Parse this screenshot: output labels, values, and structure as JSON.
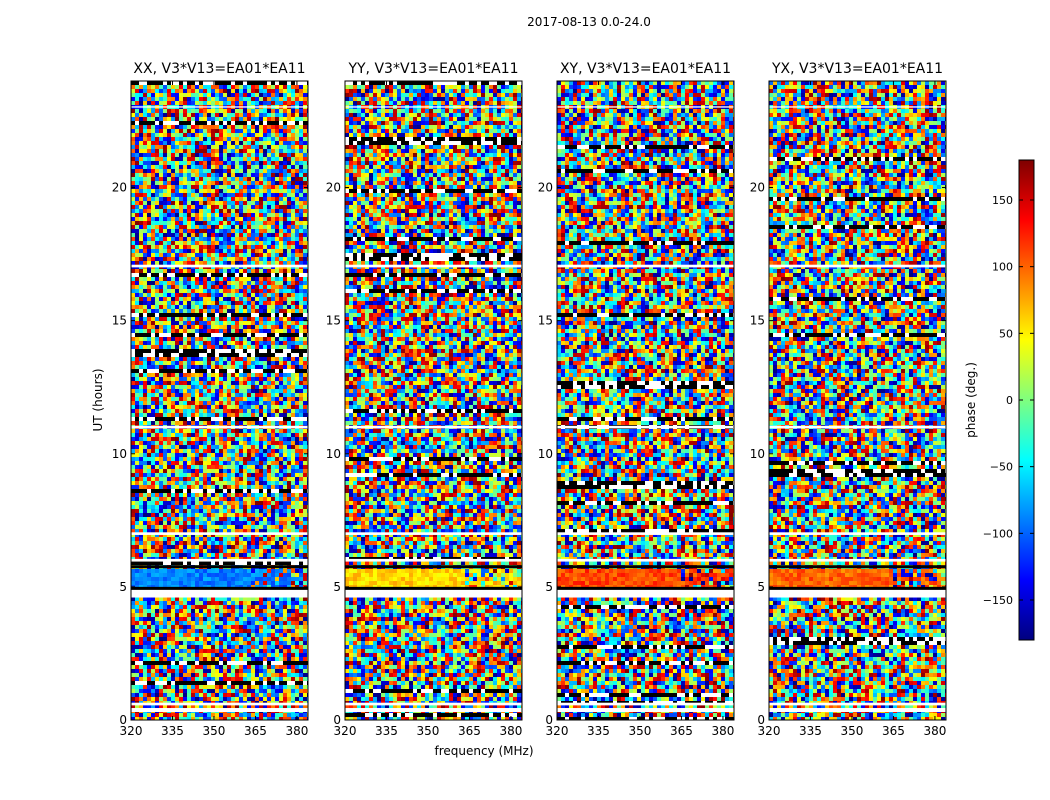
{
  "figure": {
    "suptitle": "2017-08-13 0.0-24.0",
    "xlabel": "frequency (MHz)",
    "ylabel": "UT (hours)"
  },
  "colorbar": {
    "label": "phase (deg.)",
    "range": [
      -180,
      180
    ],
    "ticks": [
      150,
      100,
      50,
      0,
      -50,
      -100,
      -150
    ],
    "tick_labels": [
      "150",
      "100",
      "50",
      "0",
      "−50",
      "−100",
      "−150"
    ],
    "colormap": [
      "#00007f",
      "#0000ff",
      "#007fff",
      "#00ffff",
      "#7fff7f",
      "#ffff00",
      "#ff7f00",
      "#ff0000",
      "#7f0000"
    ]
  },
  "chart_data": [
    {
      "type": "heatmap",
      "title": "XX, V3*V13=EA01*EA11",
      "polarization": "XX",
      "xlim": [
        320,
        384
      ],
      "ylim": [
        0,
        24
      ],
      "xticks": [
        320,
        335,
        350,
        365,
        380
      ],
      "yticks": [
        0,
        5,
        10,
        15,
        20
      ],
      "xtick_labels": [
        "320",
        "335",
        "350",
        "365",
        "380"
      ],
      "ytick_labels": [
        "0",
        "5",
        "10",
        "15",
        "20"
      ],
      "blank_hours": [
        [
          0.3,
          0.45
        ],
        [
          0.55,
          0.65
        ],
        [
          4.6,
          4.95
        ],
        [
          5.95,
          6.05
        ],
        [
          6.95,
          7.05
        ],
        [
          10.95,
          11.05
        ],
        [
          17.0,
          17.1
        ],
        [
          23.0,
          23.05
        ]
      ],
      "coherent_band_hours": [
        [
          5.0,
          5.7
        ]
      ],
      "coherent_band_phase_deg": -90
    },
    {
      "type": "heatmap",
      "title": "YY, V3*V13=EA01*EA11",
      "polarization": "YY",
      "xlim": [
        320,
        384
      ],
      "ylim": [
        0,
        24
      ],
      "xticks": [
        320,
        335,
        350,
        365,
        380
      ],
      "yticks": [
        0,
        5,
        10,
        15,
        20
      ],
      "xtick_labels": [
        "320",
        "335",
        "350",
        "365",
        "380"
      ],
      "ytick_labels": [
        "0",
        "5",
        "10",
        "15",
        "20"
      ],
      "blank_hours": [
        [
          0.3,
          0.45
        ],
        [
          0.55,
          0.65
        ],
        [
          4.6,
          4.95
        ],
        [
          5.95,
          6.05
        ],
        [
          6.95,
          7.05
        ],
        [
          10.95,
          11.05
        ],
        [
          17.0,
          17.1
        ],
        [
          23.0,
          23.05
        ]
      ],
      "coherent_band_hours": [
        [
          5.0,
          5.7
        ]
      ],
      "coherent_band_phase_deg": 60
    },
    {
      "type": "heatmap",
      "title": "XY, V3*V13=EA01*EA11",
      "polarization": "XY",
      "xlim": [
        320,
        384
      ],
      "ylim": [
        0,
        24
      ],
      "xticks": [
        320,
        335,
        350,
        365,
        380
      ],
      "yticks": [
        0,
        5,
        10,
        15,
        20
      ],
      "xtick_labels": [
        "320",
        "335",
        "350",
        "365",
        "380"
      ],
      "ytick_labels": [
        "0",
        "5",
        "10",
        "15",
        "20"
      ],
      "blank_hours": [
        [
          0.3,
          0.45
        ],
        [
          0.55,
          0.65
        ],
        [
          4.6,
          4.95
        ],
        [
          5.95,
          6.05
        ],
        [
          6.95,
          7.05
        ],
        [
          10.95,
          11.05
        ],
        [
          17.0,
          17.1
        ],
        [
          23.0,
          23.05
        ]
      ],
      "coherent_band_hours": [
        [
          5.0,
          5.7
        ]
      ],
      "coherent_band_phase_deg": 110
    },
    {
      "type": "heatmap",
      "title": "YX, V3*V13=EA01*EA11",
      "polarization": "YX",
      "xlim": [
        320,
        384
      ],
      "ylim": [
        0,
        24
      ],
      "xticks": [
        320,
        335,
        350,
        365,
        380
      ],
      "yticks": [
        0,
        5,
        10,
        15,
        20
      ],
      "xtick_labels": [
        "320",
        "335",
        "350",
        "365",
        "380"
      ],
      "ytick_labels": [
        "0",
        "5",
        "10",
        "15",
        "20"
      ],
      "blank_hours": [
        [
          0.3,
          0.45
        ],
        [
          0.55,
          0.65
        ],
        [
          4.6,
          4.95
        ],
        [
          5.95,
          6.05
        ],
        [
          6.95,
          7.05
        ],
        [
          10.95,
          11.05
        ],
        [
          17.0,
          17.1
        ],
        [
          23.0,
          23.05
        ]
      ],
      "coherent_band_hours": [
        [
          5.0,
          5.7
        ]
      ],
      "coherent_band_phase_deg": 100
    }
  ]
}
